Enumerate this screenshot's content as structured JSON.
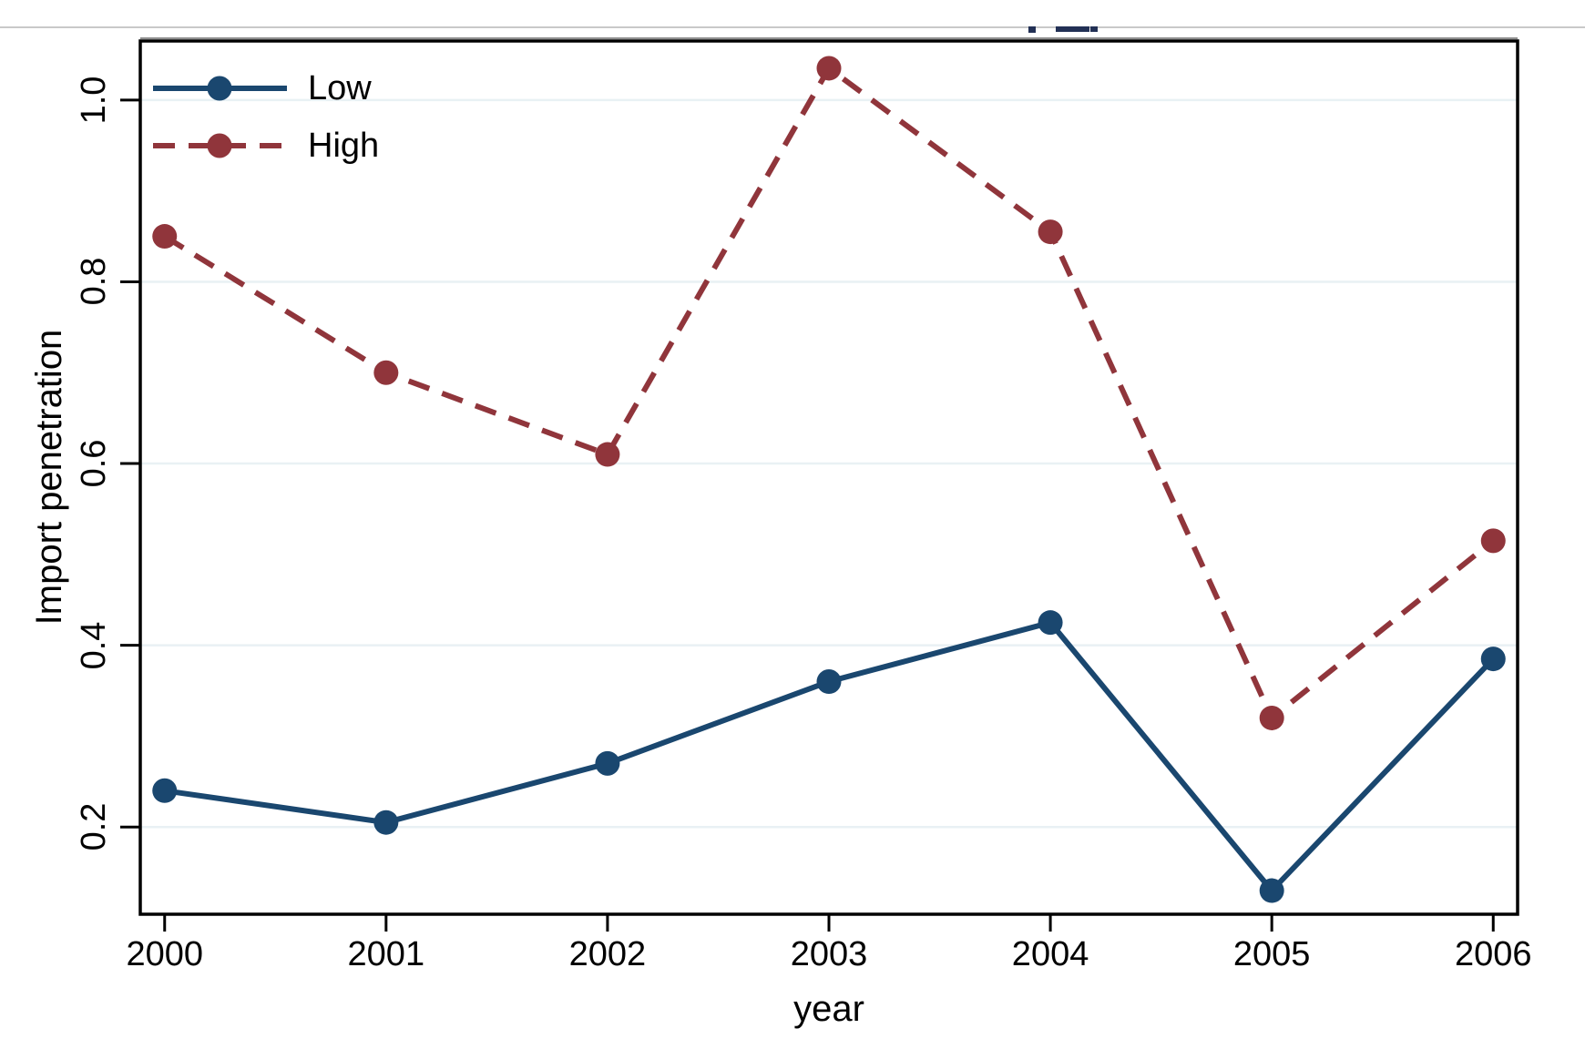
{
  "colors": {
    "low_series": "#1a476f",
    "high_series": "#90353b",
    "gridline": "#e9f1f4",
    "axis": "#000000",
    "top_artifact_navy": "#223055",
    "top_hairline_gray": "#c9c9c9",
    "border_shadow_gray": "#8f8f8f"
  },
  "chart_data": {
    "type": "line",
    "title": "",
    "xlabel": "year",
    "ylabel": "Import penetration",
    "x": [
      2000,
      2001,
      2002,
      2003,
      2004,
      2005,
      2006
    ],
    "x_tick_labels": [
      "2000",
      "2001",
      "2002",
      "2003",
      "2004",
      "2005",
      "2006"
    ],
    "y_ticks": [
      0.2,
      0.4,
      0.6,
      0.8,
      1.0
    ],
    "xlim": [
      1999.89,
      2006.11
    ],
    "ylim": [
      0.104,
      1.065
    ],
    "grid": "horizontal-only",
    "legend_position": "top-left-inside",
    "legend_frame": false,
    "series": [
      {
        "name": "Low",
        "line_style": "solid",
        "marker": "filled-circle",
        "color": "#1a476f",
        "values": [
          0.24,
          0.205,
          0.27,
          0.36,
          0.425,
          0.13,
          0.385
        ]
      },
      {
        "name": "High",
        "line_style": "dashed",
        "marker": "filled-circle",
        "color": "#90353b",
        "values": [
          0.85,
          0.7,
          0.61,
          1.035,
          0.855,
          0.32,
          0.515
        ]
      }
    ]
  }
}
